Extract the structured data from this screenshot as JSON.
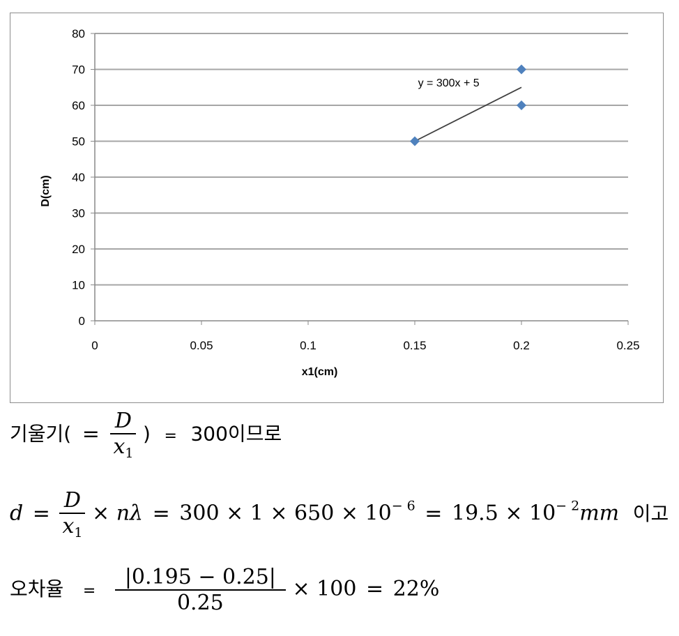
{
  "chart_data": {
    "type": "scatter",
    "xlabel": "x1(cm)",
    "ylabel": "D(cm)",
    "xlim": [
      0,
      0.25
    ],
    "ylim": [
      0,
      80
    ],
    "x_ticks": [
      "0",
      "0.05",
      "0.1",
      "0.15",
      "0.2",
      "0.25"
    ],
    "y_ticks": [
      "0",
      "10",
      "20",
      "30",
      "40",
      "50",
      "60",
      "70",
      "80"
    ],
    "grid": "horizontal",
    "legend": "none",
    "series": [
      {
        "points": [
          {
            "x": 0.15,
            "y": 50
          },
          {
            "x": 0.2,
            "y": 70
          },
          {
            "x": 0.2,
            "y": 60
          }
        ]
      }
    ],
    "trendline": {
      "slope": 300,
      "intercept": 5,
      "x_range": [
        0.15,
        0.2
      ],
      "label": "y = 300x + 5"
    },
    "colors": {
      "marker": "#4f81bd",
      "trendline": "#404040",
      "grid": "#a6a6a6"
    }
  },
  "text": {
    "line1": {
      "label_before": "기울기(",
      "eq": "=",
      "numerator": "D",
      "denominator_var": "x",
      "denominator_sub": "1",
      "label_after": ")",
      "eq2": "=",
      "value_text": "300이므로"
    },
    "line2": {
      "lhs": "d",
      "eq": "=",
      "numerator": "D",
      "denominator_var": "x",
      "denominator_sub": "1",
      "times_n_lambda": "× nλ",
      "eq2": "=",
      "product": "300 × 1 × 650 × 10",
      "exp1": "− 6",
      "eq3": "=",
      "result": "19.5 × 10",
      "exp2": "− 2",
      "unit": "mm",
      "suffix": "이고"
    },
    "line3": {
      "label": "오차율",
      "eq": "=",
      "numerator": "|0.195 − 0.25|",
      "denominator": "0.25",
      "times_100": "× 100",
      "eq2": "=",
      "result": "22%"
    }
  }
}
